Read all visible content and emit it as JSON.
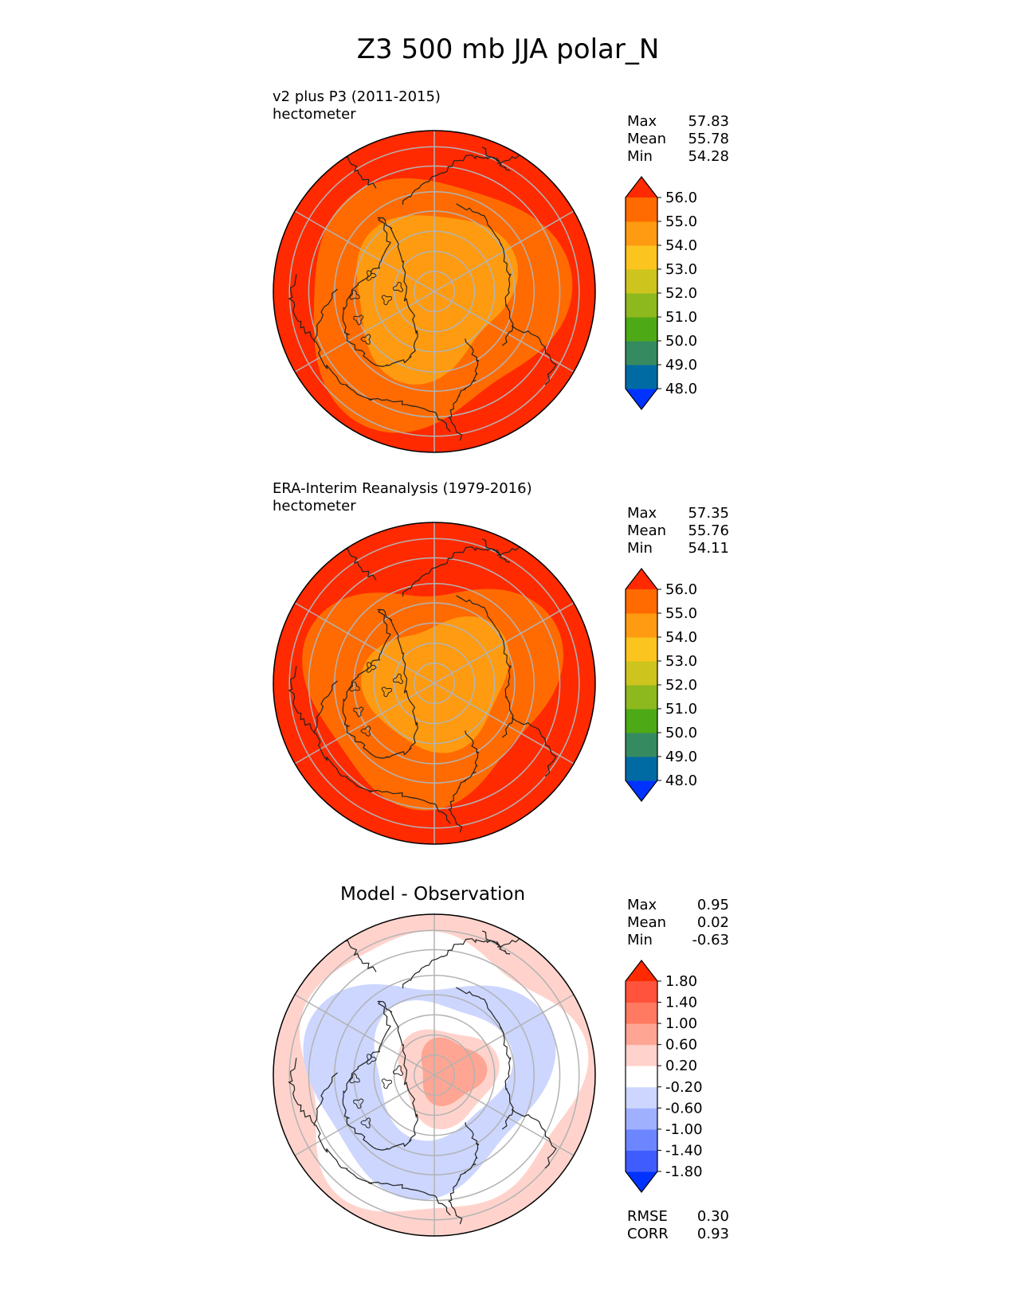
{
  "title": "Z3 500 mb JJA polar_N",
  "panels": [
    {
      "title_line1": "v2 plus P3 (2011-2015)",
      "title_line2": "hectometer",
      "stats": [
        {
          "label": "Max",
          "value": "57.83"
        },
        {
          "label": "Mean",
          "value": "55.78"
        },
        {
          "label": "Min",
          "value": "54.28"
        }
      ]
    },
    {
      "title_line1": "ERA-Interim Reanalysis (1979-2016)",
      "title_line2": "hectometer",
      "stats": [
        {
          "label": "Max",
          "value": "57.35"
        },
        {
          "label": "Mean",
          "value": "55.76"
        },
        {
          "label": "Min",
          "value": "54.11"
        }
      ]
    },
    {
      "title": "Model - Observation",
      "stats": [
        {
          "label": "Max",
          "value": "0.95"
        },
        {
          "label": "Mean",
          "value": "0.02"
        },
        {
          "label": "Min",
          "value": "-0.63"
        }
      ],
      "metrics": [
        {
          "label": "RMSE",
          "value": "0.30"
        },
        {
          "label": "CORR",
          "value": "0.93"
        }
      ]
    }
  ],
  "colors": {
    "field_levels": [
      "#0033ff",
      "#006ba3",
      "#368a60",
      "#4ea916",
      "#8db91e",
      "#cdc41e",
      "#fbc41f",
      "#ff9b10",
      "#ff6b00",
      "#ff2a00"
    ],
    "diff_levels": [
      "#0033ff",
      "#3f5cff",
      "#6c86ff",
      "#9fb0ff",
      "#ccd6ff",
      "#ffffff",
      "#ffd3cc",
      "#ffa593",
      "#ff7a60",
      "#ff533b",
      "#ff2a00"
    ],
    "grid": "#b3b3b3",
    "coast": "#222222"
  },
  "chart_data": [
    {
      "type": "heatmap",
      "projection": "north polar stereographic",
      "title": "v2 plus P3 (2011-2015)",
      "units": "hectometer",
      "colorbar_ticks": [
        "48.0",
        "49.0",
        "50.0",
        "51.0",
        "52.0",
        "53.0",
        "54.0",
        "55.0",
        "56.0"
      ],
      "colorbar_extend": "both",
      "contour_levels": [
        48,
        49,
        50,
        51,
        52,
        53,
        54,
        55,
        56
      ],
      "stats": {
        "max": 57.83,
        "mean": 55.78,
        "min": 54.28
      }
    },
    {
      "type": "heatmap",
      "projection": "north polar stereographic",
      "title": "ERA-Interim Reanalysis (1979-2016)",
      "units": "hectometer",
      "colorbar_ticks": [
        "48.0",
        "49.0",
        "50.0",
        "51.0",
        "52.0",
        "53.0",
        "54.0",
        "55.0",
        "56.0"
      ],
      "colorbar_extend": "both",
      "contour_levels": [
        48,
        49,
        50,
        51,
        52,
        53,
        54,
        55,
        56
      ],
      "stats": {
        "max": 57.35,
        "mean": 55.76,
        "min": 54.11
      }
    },
    {
      "type": "heatmap",
      "projection": "north polar stereographic",
      "title": "Model - Observation",
      "colorbar_ticks": [
        "-1.80",
        "-1.40",
        "-1.00",
        "-0.60",
        "-0.20",
        "0.20",
        "0.60",
        "1.00",
        "1.40",
        "1.80"
      ],
      "colorbar_extend": "both",
      "contour_levels": [
        -1.8,
        -1.4,
        -1.0,
        -0.6,
        -0.2,
        0.2,
        0.6,
        1.0,
        1.4,
        1.8
      ],
      "stats": {
        "max": 0.95,
        "mean": 0.02,
        "min": -0.63
      },
      "rmse": 0.3,
      "corr": 0.93
    }
  ]
}
